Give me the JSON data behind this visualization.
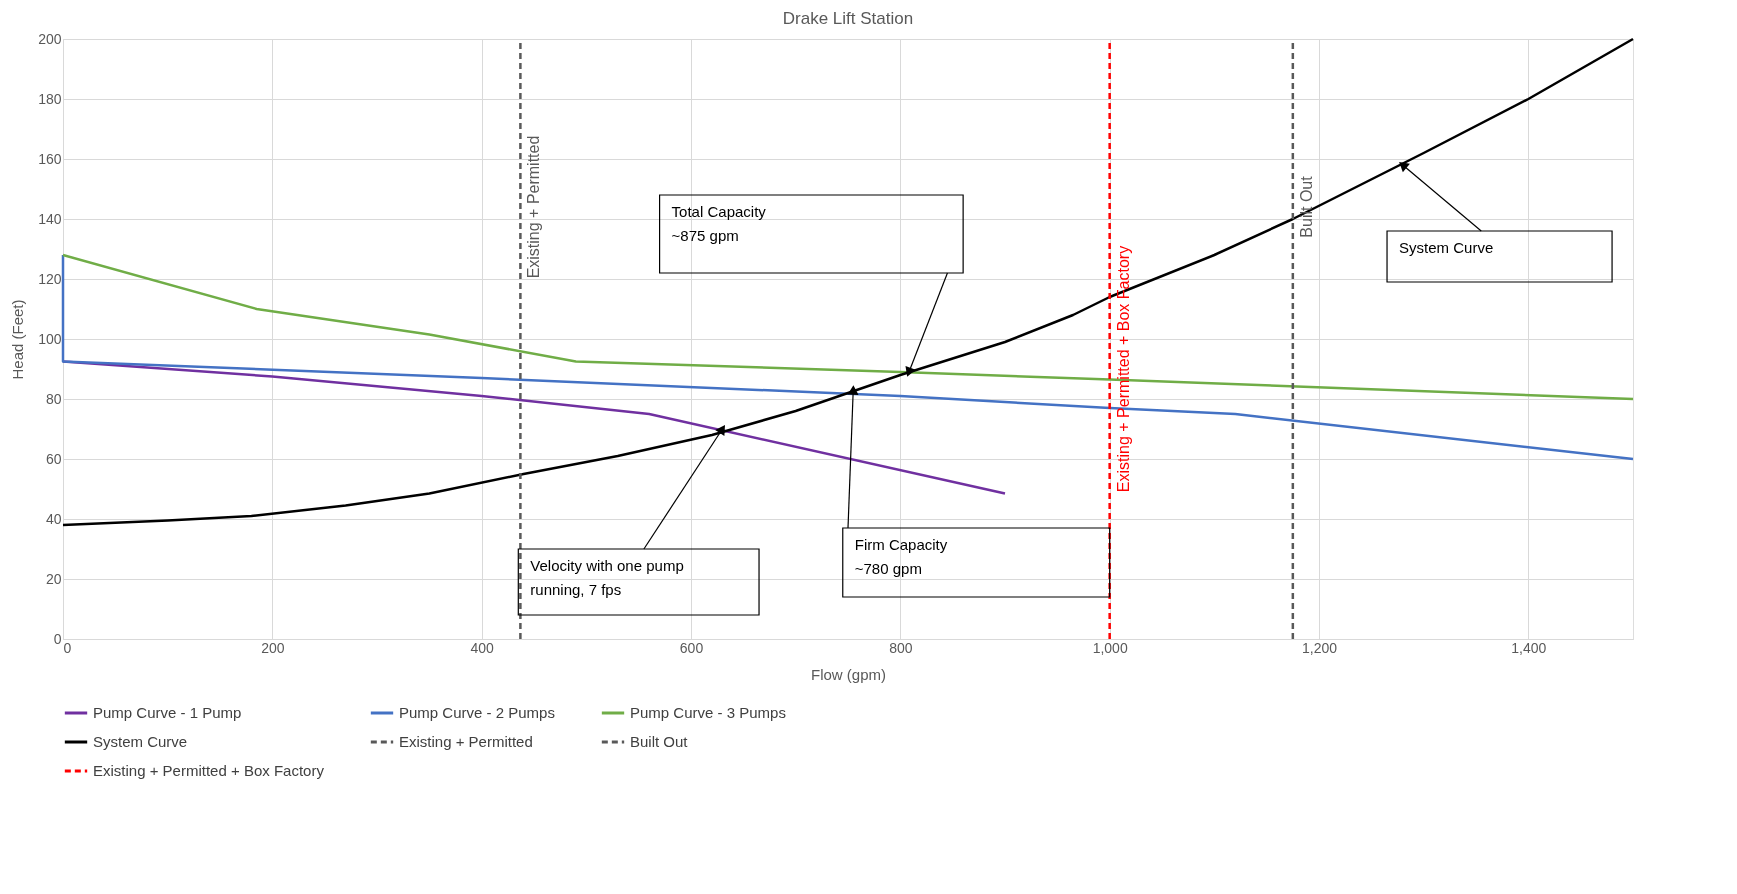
{
  "chart_data": {
    "type": "line",
    "title": "Drake Lift Station",
    "xlabel": "Flow (gpm)",
    "ylabel": "Head (Feet)",
    "xlim": [
      0,
      1500
    ],
    "ylim": [
      0,
      200
    ],
    "xticks": [
      0,
      200,
      400,
      600,
      800,
      {
        "value": 1000,
        "label": "1,000"
      },
      {
        "value": 1200,
        "label": "1,200"
      },
      {
        "value": 1400,
        "label": "1,400"
      }
    ],
    "yticks": [
      0,
      20,
      40,
      60,
      80,
      100,
      120,
      140,
      160,
      180,
      200
    ],
    "grid": true,
    "legend": "bottom",
    "line_style": "solid",
    "marker": "none",
    "series": [
      {
        "name": "Pump Curve - 1 Pump",
        "color": "#7030a0",
        "x": [
          0,
          200,
          400,
          560,
          900
        ],
        "values": [
          92.5,
          87.5,
          81,
          75,
          48.5
        ]
      },
      {
        "name": "Pump Curve - 2 Pumps",
        "color": "#4472c4",
        "x": [
          0,
          0,
          400,
          800,
          1000,
          1120,
          1500
        ],
        "values": [
          128,
          92.5,
          87,
          81,
          77,
          75,
          60
        ]
      },
      {
        "name": "Pump Curve - 3 Pumps",
        "color": "#70ad47",
        "x": [
          0,
          185,
          350,
          490,
          800,
          1000,
          1500
        ],
        "values": [
          128,
          110,
          101.5,
          92.5,
          89,
          86.5,
          80
        ]
      },
      {
        "name": "System Curve",
        "color": "#000000",
        "x": [
          0,
          100,
          180,
          270,
          350,
          440,
          530,
          620,
          700,
          800,
          900,
          965,
          1000,
          1100,
          1175,
          1300,
          1400,
          1500
        ],
        "values": [
          38,
          39.5,
          41,
          44.5,
          48.5,
          55,
          61,
          68,
          76,
          88,
          99,
          108,
          114,
          128,
          140,
          162,
          180,
          200
        ]
      }
    ],
    "ref_lines": [
      {
        "axis": "x",
        "value": 437,
        "label": "Existing + Permitted",
        "color": "#595959",
        "line_style": "dashed"
      },
      {
        "axis": "x",
        "value": 1175,
        "label": "Built Out",
        "color": "#595959",
        "line_style": "dashed"
      },
      {
        "axis": "x",
        "value": 1000,
        "label": "Existing + Permitted + Box Factory",
        "color": "#ff0000",
        "line_style": "dashed"
      }
    ],
    "annotations": [
      "Total Capacity\n~875 gpm",
      {
        "text": "Firm Capacity\n~780 gpm",
        "x": 755,
        "y": 83
      },
      {
        "text": "Velocity with one pump\nrunning, 7 fps",
        "x": 630,
        "y": 70
      },
      {
        "text": "System Curve",
        "x": 1280,
        "y": 158
      }
    ]
  }
}
